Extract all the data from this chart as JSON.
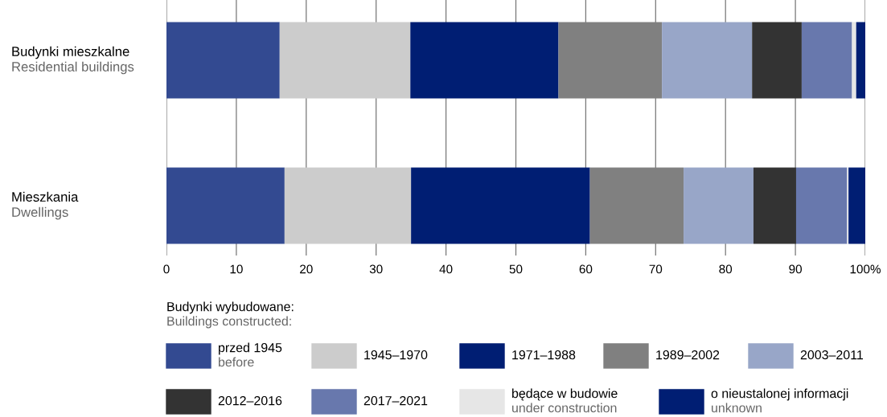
{
  "chart_data": {
    "type": "bar",
    "orientation": "horizontal",
    "stacked": true,
    "categories": [
      "Budynki mieszkalne\nResidential buildings",
      "Mieszkania\nDwellings"
    ],
    "legend_title": "Budynki wybudowane:\nBuildings constructed:",
    "series": [
      {
        "name": "przed 1945\nbefore",
        "color": "#334a91",
        "values": [
          16.2,
          16.9
        ]
      },
      {
        "name": "1945–1970",
        "color": "#cccccc",
        "values": [
          18.7,
          18.1
        ]
      },
      {
        "name": "1971–1988",
        "color": "#001e73",
        "values": [
          21.2,
          25.6
        ]
      },
      {
        "name": "1989–2002",
        "color": "#808080",
        "values": [
          14.8,
          13.4
        ]
      },
      {
        "name": "2003–2011",
        "color": "#98a6c8",
        "values": [
          12.9,
          10.0
        ]
      },
      {
        "name": "2012–2016",
        "color": "#333333",
        "values": [
          7.1,
          6.1
        ]
      },
      {
        "name": "2017–2021",
        "color": "#6878ad",
        "values": [
          7.2,
          7.3
        ]
      },
      {
        "name": "będące w budowie\nunder construction",
        "color": "#e6e6e6",
        "values": [
          0.6,
          0.2
        ]
      },
      {
        "name": "o nieustalonej informacji\nunknown",
        "color": "#001e73",
        "values": [
          1.3,
          2.4
        ]
      }
    ],
    "xlim": [
      0,
      100
    ],
    "xticks": [
      0,
      10,
      20,
      30,
      40,
      50,
      60,
      70,
      80,
      90,
      {
        "value": 100,
        "label": "100%"
      }
    ],
    "grid": "x",
    "legend": "bottom"
  }
}
